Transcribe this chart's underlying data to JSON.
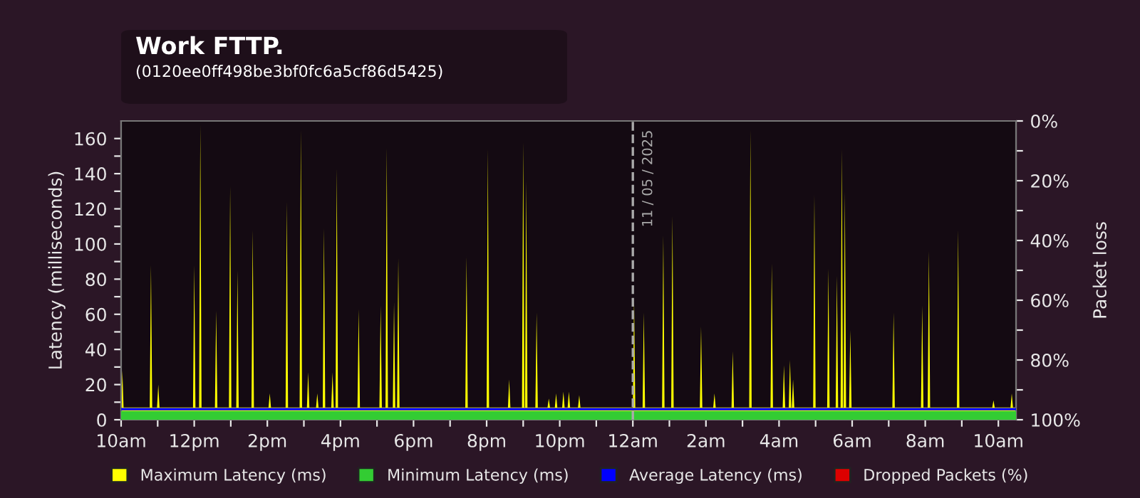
{
  "chart_data": {
    "type": "area",
    "title": "Work FTTP.",
    "subtitle": "(0120ee0ff498be3bf0fc6a5cf86d5425)",
    "ylabel": "Latency (milliseconds)",
    "y2label": "Packet loss",
    "xlim": [
      "2025-05-10T10:00",
      "2025-05-11T10:29"
    ],
    "ylim": [
      0,
      170
    ],
    "y2lim": [
      100,
      0
    ],
    "xticks": [
      {
        "value": "2025-05-10T10:00",
        "label": "10am"
      },
      {
        "value": "2025-05-10T11:00",
        "label": null
      },
      {
        "value": "2025-05-10T12:00",
        "label": "12pm"
      },
      {
        "value": "2025-05-10T13:00",
        "label": null
      },
      {
        "value": "2025-05-10T14:00",
        "label": "2pm"
      },
      {
        "value": "2025-05-10T15:00",
        "label": null
      },
      {
        "value": "2025-05-10T16:00",
        "label": "4pm"
      },
      {
        "value": "2025-05-10T17:00",
        "label": null
      },
      {
        "value": "2025-05-10T18:00",
        "label": "6pm"
      },
      {
        "value": "2025-05-10T19:00",
        "label": null
      },
      {
        "value": "2025-05-10T20:00",
        "label": "8pm"
      },
      {
        "value": "2025-05-10T21:00",
        "label": null
      },
      {
        "value": "2025-05-10T22:00",
        "label": "10pm"
      },
      {
        "value": "2025-05-10T23:00",
        "label": null
      },
      {
        "value": "2025-05-11T00:00",
        "label": "12am"
      },
      {
        "value": "2025-05-11T01:00",
        "label": null
      },
      {
        "value": "2025-05-11T02:00",
        "label": "2am"
      },
      {
        "value": "2025-05-11T03:00",
        "label": null
      },
      {
        "value": "2025-05-11T04:00",
        "label": "4am"
      },
      {
        "value": "2025-05-11T05:00",
        "label": null
      },
      {
        "value": "2025-05-11T06:00",
        "label": "6am"
      },
      {
        "value": "2025-05-11T07:00",
        "label": null
      },
      {
        "value": "2025-05-11T08:00",
        "label": "8am"
      },
      {
        "value": "2025-05-11T09:00",
        "label": null
      },
      {
        "value": "2025-05-11T10:00",
        "label": "10am"
      }
    ],
    "yticks": [
      0,
      {
        "value": 10,
        "label": null
      },
      20,
      {
        "value": 30,
        "label": null
      },
      40,
      {
        "value": 50,
        "label": null
      },
      60,
      {
        "value": 70,
        "label": null
      },
      80,
      {
        "value": 90,
        "label": null
      },
      100,
      {
        "value": 110,
        "label": null
      },
      120,
      {
        "value": 130,
        "label": null
      },
      140,
      {
        "value": 150,
        "label": null
      },
      160
    ],
    "y2ticks": [
      {
        "value": 0,
        "label": "0%"
      },
      {
        "value": 10,
        "label": null
      },
      {
        "value": 20,
        "label": "20%"
      },
      {
        "value": 30,
        "label": null
      },
      {
        "value": 40,
        "label": "40%"
      },
      {
        "value": 50,
        "label": null
      },
      {
        "value": 60,
        "label": "60%"
      },
      {
        "value": 70,
        "label": null
      },
      {
        "value": 80,
        "label": "80%"
      },
      {
        "value": 90,
        "label": null
      },
      {
        "value": 100,
        "label": "100%"
      }
    ],
    "legend": "bottom",
    "ref_lines": [
      {
        "axis": "x",
        "value": "2025-05-11T00:00",
        "label": "11 / 05 / 2025",
        "color": "#aaaaaa",
        "line_style": "dashed"
      }
    ],
    "series": [
      {
        "name": "Maximum Latency (ms)",
        "type": "area",
        "color": "#ffff00",
        "x": [
          "2025-05-10T10:00",
          "2025-05-10T10:02",
          "2025-05-10T10:04",
          "2025-05-10T10:47",
          "2025-05-10T10:49",
          "2025-05-10T10:51",
          "2025-05-10T10:59",
          "2025-05-10T11:01",
          "2025-05-10T11:03",
          "2025-05-10T11:58",
          "2025-05-10T12:00",
          "2025-05-10T12:02",
          "2025-05-10T12:08",
          "2025-05-10T12:10",
          "2025-05-10T12:12",
          "2025-05-10T12:34",
          "2025-05-10T12:36",
          "2025-05-10T12:38",
          "2025-05-10T12:57",
          "2025-05-10T12:59",
          "2025-05-10T13:01",
          "2025-05-10T13:09",
          "2025-05-10T13:11",
          "2025-05-10T13:13",
          "2025-05-10T13:34",
          "2025-05-10T13:36",
          "2025-05-10T13:38",
          "2025-05-10T14:02",
          "2025-05-10T14:04",
          "2025-05-10T14:06",
          "2025-05-10T14:30",
          "2025-05-10T14:32",
          "2025-05-10T14:34",
          "2025-05-10T14:53",
          "2025-05-10T14:55",
          "2025-05-10T14:57",
          "2025-05-10T15:05",
          "2025-05-10T15:07",
          "2025-05-10T15:09",
          "2025-05-10T15:20",
          "2025-05-10T15:22",
          "2025-05-10T15:24",
          "2025-05-10T15:31",
          "2025-05-10T15:33",
          "2025-05-10T15:35",
          "2025-05-10T15:45",
          "2025-05-10T15:47",
          "2025-05-10T15:49",
          "2025-05-10T15:52",
          "2025-05-10T15:54",
          "2025-05-10T15:56",
          "2025-05-10T16:28",
          "2025-05-10T16:30",
          "2025-05-10T16:32",
          "2025-05-10T17:04",
          "2025-05-10T17:06",
          "2025-05-10T17:08",
          "2025-05-10T17:14",
          "2025-05-10T17:16",
          "2025-05-10T17:18",
          "2025-05-10T17:26",
          "2025-05-10T17:28",
          "2025-05-10T17:30",
          "2025-05-10T17:33",
          "2025-05-10T17:35",
          "2025-05-10T17:37",
          "2025-05-10T19:25",
          "2025-05-10T19:27",
          "2025-05-10T19:29",
          "2025-05-10T20:00",
          "2025-05-10T20:02",
          "2025-05-10T20:04",
          "2025-05-10T20:35",
          "2025-05-10T20:37",
          "2025-05-10T20:39",
          "2025-05-10T20:58",
          "2025-05-10T21:00",
          "2025-05-10T21:02",
          "2025-05-10T21:03",
          "2025-05-10T21:05",
          "2025-05-10T21:07",
          "2025-05-10T21:20",
          "2025-05-10T21:22",
          "2025-05-10T21:24",
          "2025-05-10T21:40",
          "2025-05-10T21:42",
          "2025-05-10T21:44",
          "2025-05-10T21:52",
          "2025-05-10T21:54",
          "2025-05-10T21:56",
          "2025-05-10T22:04",
          "2025-05-10T22:06",
          "2025-05-10T22:08",
          "2025-05-10T22:13",
          "2025-05-10T22:15",
          "2025-05-10T22:17",
          "2025-05-10T22:30",
          "2025-05-10T22:32",
          "2025-05-10T22:34",
          "2025-05-11T00:00",
          "2025-05-11T00:02",
          "2025-05-11T00:04",
          "2025-05-11T00:16",
          "2025-05-11T00:18",
          "2025-05-11T00:20",
          "2025-05-11T00:48",
          "2025-05-11T00:50",
          "2025-05-11T00:52",
          "2025-05-11T01:03",
          "2025-05-11T01:05",
          "2025-05-11T01:07",
          "2025-05-11T01:50",
          "2025-05-11T01:52",
          "2025-05-11T01:54",
          "2025-05-11T02:12",
          "2025-05-11T02:14",
          "2025-05-11T02:16",
          "2025-05-11T02:42",
          "2025-05-11T02:44",
          "2025-05-11T02:46",
          "2025-05-11T03:11",
          "2025-05-11T03:13",
          "2025-05-11T03:15",
          "2025-05-11T03:46",
          "2025-05-11T03:48",
          "2025-05-11T03:50",
          "2025-05-11T04:06",
          "2025-05-11T04:08",
          "2025-05-11T04:10",
          "2025-05-11T04:16",
          "2025-05-11T04:18",
          "2025-05-11T04:20",
          "2025-05-11T04:21",
          "2025-05-11T04:23",
          "2025-05-11T04:25",
          "2025-05-11T04:56",
          "2025-05-11T04:58",
          "2025-05-11T05:00",
          "2025-05-11T05:19",
          "2025-05-11T05:21",
          "2025-05-11T05:23",
          "2025-05-11T05:33",
          "2025-05-11T05:35",
          "2025-05-11T05:37",
          "2025-05-11T05:41",
          "2025-05-11T05:43",
          "2025-05-11T05:45",
          "2025-05-11T05:46",
          "2025-05-11T05:48",
          "2025-05-11T05:50",
          "2025-05-11T05:55",
          "2025-05-11T05:57",
          "2025-05-11T05:59",
          "2025-05-11T07:06",
          "2025-05-11T07:08",
          "2025-05-11T07:10",
          "2025-05-11T07:53",
          "2025-05-11T07:55",
          "2025-05-11T07:57",
          "2025-05-11T08:04",
          "2025-05-11T08:06",
          "2025-05-11T08:08",
          "2025-05-11T08:52",
          "2025-05-11T08:54",
          "2025-05-11T08:56",
          "2025-05-11T09:50",
          "2025-05-11T09:52",
          "2025-05-11T09:54",
          "2025-05-11T10:20",
          "2025-05-11T10:22",
          "2025-05-11T10:24",
          "2025-05-11T10:29"
        ],
        "values": [
          7,
          28,
          7,
          7,
          88,
          7,
          7,
          20,
          7,
          7,
          88,
          7,
          7,
          168,
          7,
          7,
          62,
          7,
          7,
          133,
          7,
          7,
          85,
          7,
          7,
          108,
          7,
          7,
          15,
          7,
          7,
          124,
          7,
          7,
          165,
          7,
          7,
          27,
          7,
          7,
          15,
          7,
          7,
          109,
          7,
          7,
          27,
          7,
          7,
          143,
          7,
          7,
          63,
          7,
          7,
          65,
          7,
          7,
          155,
          7,
          7,
          67,
          7,
          7,
          92,
          7,
          7,
          93,
          7,
          7,
          154,
          7,
          7,
          23,
          7,
          7,
          158,
          7,
          7,
          136,
          7,
          7,
          61,
          7,
          7,
          12,
          7,
          7,
          15,
          7,
          7,
          16,
          7,
          7,
          16,
          7,
          7,
          14,
          7,
          7,
          69,
          7,
          7,
          61,
          7,
          7,
          105,
          7,
          7,
          116,
          7,
          7,
          53,
          7,
          7,
          15,
          7,
          7,
          39,
          7,
          7,
          165,
          7,
          7,
          89,
          7,
          7,
          31,
          7,
          7,
          34,
          7,
          7,
          23,
          7,
          7,
          128,
          7,
          7,
          86,
          7,
          7,
          82,
          7,
          7,
          154,
          7,
          7,
          130,
          7,
          7,
          51,
          7,
          7,
          61,
          7,
          7,
          65,
          7,
          7,
          96,
          7,
          7,
          108,
          7,
          7,
          11,
          7,
          7,
          15,
          7,
          7
        ]
      },
      {
        "name": "Minimum Latency (ms)",
        "color": "#33cc33",
        "x": [
          "2025-05-10T10:00",
          "2025-05-11T10:29"
        ],
        "values": [
          5,
          5
        ]
      },
      {
        "name": "Average Latency (ms)",
        "type": "line",
        "color": "#0000ff",
        "x": [
          "2025-05-10T10:00",
          "2025-05-11T10:29"
        ],
        "values": [
          6,
          6
        ]
      },
      {
        "name": "Dropped Packets (%)",
        "color": "#dd0000"
      }
    ]
  }
}
